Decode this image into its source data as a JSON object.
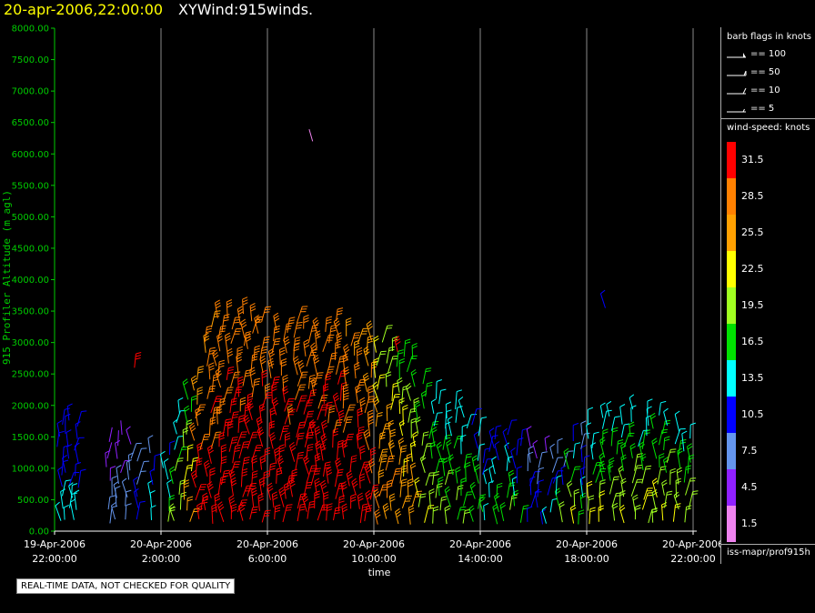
{
  "header": {
    "date_label": "20-apr-2006,22:00:00",
    "title": "XYWind:915winds."
  },
  "chart_data": {
    "type": "scatter",
    "title": "XYWind:915winds.",
    "xlabel": "time",
    "ylabel": "915 Profiler Altitude (m agl)",
    "ylim": [
      0,
      8000
    ],
    "xlim_hours": [
      0,
      24
    ],
    "y_ticks": [
      "0.00",
      "500.00",
      "1000.00",
      "1500.00",
      "2000.00",
      "2500.00",
      "3000.00",
      "3500.00",
      "4000.00",
      "4500.00",
      "5000.00",
      "5500.00",
      "6000.00",
      "6500.00",
      "7000.00",
      "7500.00",
      "8000.00"
    ],
    "y_tick_values": [
      0,
      500,
      1000,
      1500,
      2000,
      2500,
      3000,
      3500,
      4000,
      4500,
      5000,
      5500,
      6000,
      6500,
      7000,
      7500,
      8000
    ],
    "x_ticks": [
      {
        "hour": 0,
        "date": "19-Apr-2006",
        "time": "22:00:00"
      },
      {
        "hour": 4,
        "date": "20-Apr-2006",
        "time": "2:00:00"
      },
      {
        "hour": 8,
        "date": "20-Apr-2006",
        "time": "6:00:00"
      },
      {
        "hour": 12,
        "date": "20-Apr-2006",
        "time": "10:00:00"
      },
      {
        "hour": 16,
        "date": "20-Apr-2006",
        "time": "14:00:00"
      },
      {
        "hour": 20,
        "date": "20-Apr-2006",
        "time": "18:00:00"
      },
      {
        "hour": 24,
        "date": "20-Apr-2006",
        "time": "22:00:00"
      }
    ],
    "columns": [
      {
        "hour": 0.2,
        "top": 1700,
        "speed_low": 10,
        "speed_high": 13
      },
      {
        "hour": 0.5,
        "top": 1750,
        "speed_low": 10,
        "speed_high": 13
      },
      {
        "hour": 0.8,
        "top": 1650,
        "speed_low": 9,
        "speed_high": 13
      },
      {
        "hour": 2.1,
        "top": 1400,
        "speed_low": 4,
        "speed_high": 8
      },
      {
        "hour": 2.4,
        "top": 1550,
        "speed_low": 4,
        "speed_high": 8
      },
      {
        "hour": 2.8,
        "top": 1400,
        "speed_low": 5,
        "speed_high": 9
      },
      {
        "hour": 3.2,
        "top": 1100,
        "speed_low": 6,
        "speed_high": 12
      },
      {
        "hour": 3.6,
        "top": 1200,
        "speed_low": 8,
        "speed_high": 14
      },
      {
        "hour": 4.2,
        "top": 1200,
        "speed_low": 10,
        "speed_high": 18
      },
      {
        "hour": 4.6,
        "top": 1900,
        "speed_low": 12,
        "speed_high": 22
      },
      {
        "hour": 5.0,
        "top": 2100,
        "speed_low": 14,
        "speed_high": 26
      },
      {
        "hour": 5.4,
        "top": 2400,
        "speed_low": 26,
        "speed_high": 33
      },
      {
        "hour": 5.8,
        "top": 3200,
        "speed_low": 26,
        "speed_high": 33
      },
      {
        "hour": 6.2,
        "top": 3400,
        "speed_low": 27,
        "speed_high": 33
      },
      {
        "hour": 6.6,
        "top": 3400,
        "speed_low": 27,
        "speed_high": 34
      },
      {
        "hour": 7.0,
        "top": 3500,
        "speed_low": 27,
        "speed_high": 34
      },
      {
        "hour": 7.4,
        "top": 3300,
        "speed_low": 27,
        "speed_high": 34
      },
      {
        "hour": 7.8,
        "top": 3300,
        "speed_low": 27,
        "speed_high": 34
      },
      {
        "hour": 8.2,
        "top": 3200,
        "speed_low": 27,
        "speed_high": 34
      },
      {
        "hour": 8.6,
        "top": 3200,
        "speed_low": 27,
        "speed_high": 34
      },
      {
        "hour": 9.0,
        "top": 3300,
        "speed_low": 27,
        "speed_high": 34
      },
      {
        "hour": 9.4,
        "top": 3200,
        "speed_low": 27,
        "speed_high": 34
      },
      {
        "hour": 9.8,
        "top": 3100,
        "speed_low": 27,
        "speed_high": 33
      },
      {
        "hour": 10.2,
        "top": 3200,
        "speed_low": 27,
        "speed_high": 33
      },
      {
        "hour": 10.6,
        "top": 3300,
        "speed_low": 27,
        "speed_high": 33
      },
      {
        "hour": 11.0,
        "top": 3100,
        "speed_low": 26,
        "speed_high": 33
      },
      {
        "hour": 11.4,
        "top": 3000,
        "speed_low": 26,
        "speed_high": 33
      },
      {
        "hour": 11.8,
        "top": 3000,
        "speed_low": 25,
        "speed_high": 32
      },
      {
        "hour": 12.2,
        "top": 3000,
        "speed_low": 20,
        "speed_high": 29
      },
      {
        "hour": 12.6,
        "top": 2900,
        "speed_low": 18,
        "speed_high": 28
      },
      {
        "hour": 13.0,
        "top": 2800,
        "speed_low": 17,
        "speed_high": 27
      },
      {
        "hour": 13.4,
        "top": 2700,
        "speed_low": 16,
        "speed_high": 26
      },
      {
        "hour": 13.8,
        "top": 2300,
        "speed_low": 15,
        "speed_high": 22
      },
      {
        "hour": 14.2,
        "top": 2100,
        "speed_low": 14,
        "speed_high": 20
      },
      {
        "hour": 14.6,
        "top": 2000,
        "speed_low": 13,
        "speed_high": 19
      },
      {
        "hour": 15.0,
        "top": 1900,
        "speed_low": 12,
        "speed_high": 19
      },
      {
        "hour": 15.4,
        "top": 1800,
        "speed_low": 12,
        "speed_high": 18
      },
      {
        "hour": 15.8,
        "top": 1700,
        "speed_low": 11,
        "speed_high": 17
      },
      {
        "hour": 16.2,
        "top": 1300,
        "speed_low": 9,
        "speed_high": 16
      },
      {
        "hour": 16.6,
        "top": 1500,
        "speed_low": 10,
        "speed_high": 17
      },
      {
        "hour": 17.0,
        "top": 1500,
        "speed_low": 10,
        "speed_high": 18
      },
      {
        "hour": 17.4,
        "top": 1400,
        "speed_low": 8,
        "speed_high": 16
      },
      {
        "hour": 17.8,
        "top": 1300,
        "speed_low": 5,
        "speed_high": 12
      },
      {
        "hour": 18.2,
        "top": 1200,
        "speed_low": 5,
        "speed_high": 12
      },
      {
        "hour": 18.6,
        "top": 1300,
        "speed_low": 5,
        "speed_high": 14
      },
      {
        "hour": 19.0,
        "top": 1200,
        "speed_low": 6,
        "speed_high": 20
      },
      {
        "hour": 19.4,
        "top": 1400,
        "speed_low": 10,
        "speed_high": 22
      },
      {
        "hour": 19.8,
        "top": 1500,
        "speed_low": 6,
        "speed_high": 16
      },
      {
        "hour": 20.2,
        "top": 1700,
        "speed_low": 12,
        "speed_high": 22
      },
      {
        "hour": 20.6,
        "top": 1800,
        "speed_low": 13,
        "speed_high": 21
      },
      {
        "hour": 21.0,
        "top": 1800,
        "speed_low": 13,
        "speed_high": 21
      },
      {
        "hour": 21.4,
        "top": 1700,
        "speed_low": 13,
        "speed_high": 21
      },
      {
        "hour": 21.8,
        "top": 1900,
        "speed_low": 13,
        "speed_high": 21
      },
      {
        "hour": 22.2,
        "top": 1900,
        "speed_low": 13,
        "speed_high": 22
      },
      {
        "hour": 22.6,
        "top": 1800,
        "speed_low": 14,
        "speed_high": 22
      },
      {
        "hour": 23.0,
        "top": 1700,
        "speed_low": 14,
        "speed_high": 22
      },
      {
        "hour": 23.4,
        "top": 1600,
        "speed_low": 13,
        "speed_high": 22
      },
      {
        "hour": 23.8,
        "top": 1500,
        "speed_low": 12,
        "speed_high": 20
      }
    ],
    "outliers": [
      {
        "hour": 9.7,
        "alt": 6200,
        "speed": 1.5
      },
      {
        "hour": 20.7,
        "alt": 3550,
        "speed": 10
      },
      {
        "hour": 3.0,
        "alt": 2600,
        "speed": 31
      },
      {
        "hour": 12.9,
        "alt": 2850,
        "speed": 31
      }
    ]
  },
  "legend": {
    "barb_title": "barb flags in knots",
    "barbs": [
      {
        "label": "== 100",
        "kind": "pennant"
      },
      {
        "label": "== 50",
        "kind": "flag"
      },
      {
        "label": "== 10",
        "kind": "full"
      },
      {
        "label": "== 5",
        "kind": "half"
      }
    ],
    "speed_title": "wind-speed: knots",
    "scale": [
      {
        "label": "31.5",
        "color": "#ff0000"
      },
      {
        "label": "28.5",
        "color": "#ff8000"
      },
      {
        "label": "25.5",
        "color": "#ffa000"
      },
      {
        "label": "22.5",
        "color": "#ffff00"
      },
      {
        "label": "19.5",
        "color": "#a0ff20"
      },
      {
        "label": "16.5",
        "color": "#00e000"
      },
      {
        "label": "13.5",
        "color": "#00ffff"
      },
      {
        "label": "10.5",
        "color": "#0000ff"
      },
      {
        "label": "7.5",
        "color": "#6495ed"
      },
      {
        "label": "4.5",
        "color": "#9020ff"
      },
      {
        "label": "1.5",
        "color": "#ee82ee"
      }
    ],
    "source": "iss-mapr/prof915h"
  },
  "footer": {
    "disclaimer": "REAL-TIME DATA, NOT CHECKED FOR QUALITY"
  }
}
